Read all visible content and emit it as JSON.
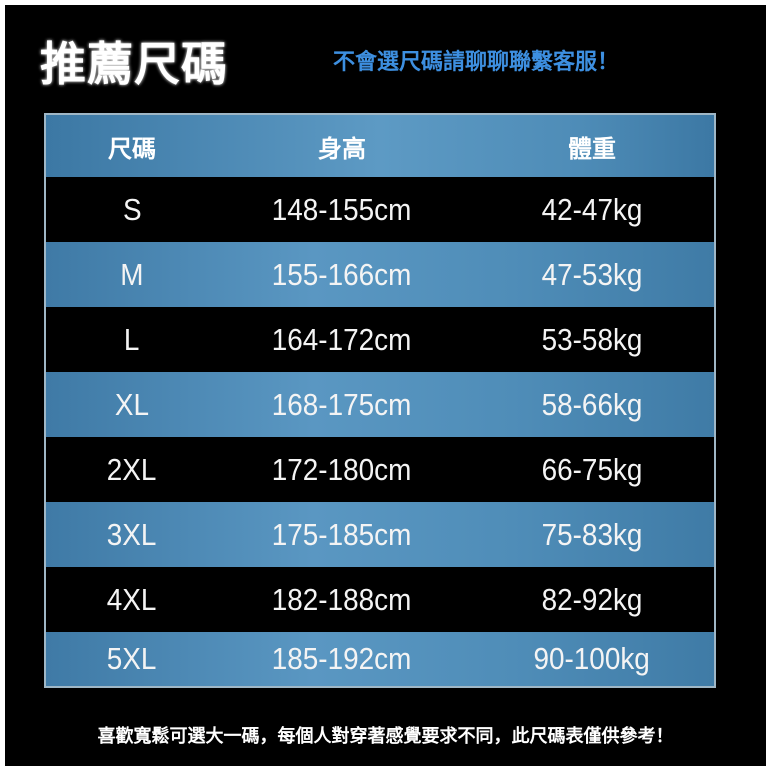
{
  "title": "推薦尺碼",
  "subtitle": "不會選尺碼請聊聊聯繫客服！",
  "table": {
    "headers": [
      "尺碼",
      "身高",
      "體重"
    ],
    "rows": [
      {
        "size": "S",
        "height": "148-155cm",
        "weight": "42-47kg"
      },
      {
        "size": "M",
        "height": "155-166cm",
        "weight": "47-53kg"
      },
      {
        "size": "L",
        "height": "164-172cm",
        "weight": "53-58kg"
      },
      {
        "size": "XL",
        "height": "168-175cm",
        "weight": "58-66kg"
      },
      {
        "size": "2XL",
        "height": "172-180cm",
        "weight": "66-75kg"
      },
      {
        "size": "3XL",
        "height": "175-185cm",
        "weight": "75-83kg"
      },
      {
        "size": "4XL",
        "height": "182-188cm",
        "weight": "82-92kg"
      },
      {
        "size": "5XL",
        "height": "185-192cm",
        "weight": "90-100kg"
      }
    ]
  },
  "footer": "喜歡寬鬆可選大一碼，每個人對穿著感覺要求不同，此尺碼表僅供參考！",
  "colors": {
    "background": "#000000",
    "row_blue": "#4f8db8",
    "subtitle": "#3d8fe0"
  }
}
